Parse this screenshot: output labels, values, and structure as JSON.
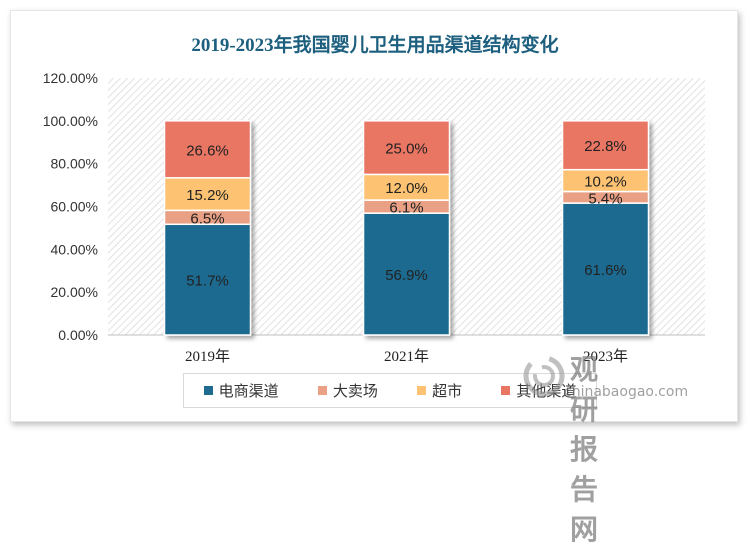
{
  "chart_data": {
    "type": "bar",
    "stacked": true,
    "title": "2019-2023年我国婴儿卫生用品渠道结构变化",
    "categories": [
      "2019年",
      "2021年",
      "2023年"
    ],
    "series": [
      {
        "name": "电商渠道",
        "values": [
          51.7,
          56.9,
          61.6
        ],
        "labels": [
          "51.7%",
          "56.9%",
          "61.6%"
        ],
        "color": "#1f6a8f"
      },
      {
        "name": "大卖场",
        "values": [
          6.5,
          6.1,
          5.4
        ],
        "labels": [
          "6.5%",
          "6.1%",
          "5.4%"
        ],
        "color": "#e9a084"
      },
      {
        "name": "超市",
        "values": [
          15.2,
          12.0,
          10.2
        ],
        "labels": [
          "15.2%",
          "12.0%",
          "10.2%"
        ],
        "color": "#fdc372"
      },
      {
        "name": "其他渠道",
        "values": [
          26.6,
          25.0,
          22.8
        ],
        "labels": [
          "26.6%",
          "25.0%",
          "22.8%"
        ],
        "color": "#e97563"
      }
    ],
    "ylim": [
      0,
      120
    ],
    "yticks": [
      "0.00%",
      "20.00%",
      "40.00%",
      "60.00%",
      "80.00%",
      "100.00%",
      "120.00%"
    ],
    "grid": false,
    "plot_background": "diagonal hatch",
    "legend_position": "bottom"
  },
  "watermark": {
    "cn": "观研报告网",
    "en": "chinabaogao.com"
  }
}
